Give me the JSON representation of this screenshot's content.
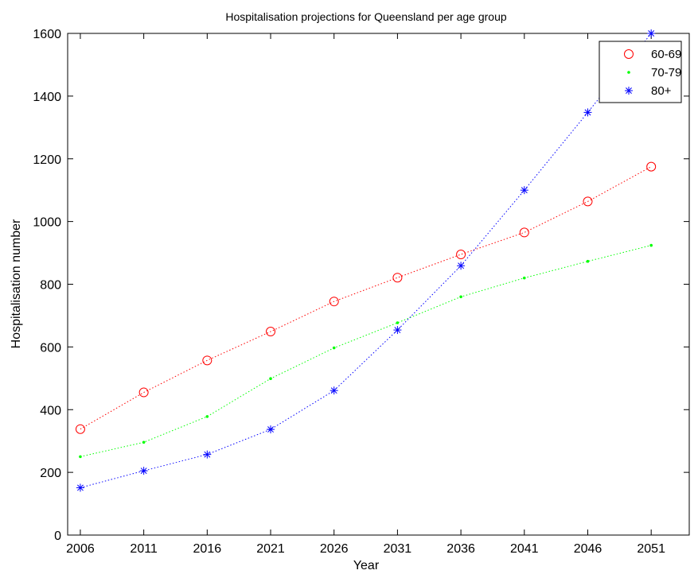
{
  "chart_data": {
    "type": "line",
    "title": "Hospitalisation projections for Queensland per age group",
    "xlabel": "Year",
    "ylabel": "Hospitalisation number",
    "x": [
      2006,
      2011,
      2016,
      2021,
      2026,
      2031,
      2036,
      2041,
      2046,
      2051
    ],
    "xticks": [
      "2006",
      "2011",
      "2016",
      "2021",
      "2026",
      "2031",
      "2036",
      "2041",
      "2046",
      "2051"
    ],
    "yticks": [
      "0",
      "200",
      "400",
      "600",
      "800",
      "1000",
      "1200",
      "1400",
      "1600"
    ],
    "xlim": [
      2005,
      2054
    ],
    "ylim": [
      0,
      1600
    ],
    "grid": false,
    "legend_position": "top-right",
    "series": [
      {
        "name": "60-69",
        "color": "#ff0000",
        "marker": "circle",
        "line_style": "dotted",
        "values": [
          338,
          455,
          557,
          649,
          745,
          821,
          895,
          965,
          1064,
          1175
        ]
      },
      {
        "name": "70-79",
        "color": "#00ff00",
        "marker": "point",
        "line_style": "dotted",
        "values": [
          250,
          296,
          378,
          499,
          597,
          677,
          760,
          820,
          873,
          924
        ]
      },
      {
        "name": "80+",
        "color": "#0000ff",
        "marker": "asterisk",
        "line_style": "dotted",
        "values": [
          151,
          205,
          257,
          337,
          461,
          654,
          859,
          1100,
          1348,
          1600
        ]
      }
    ]
  }
}
